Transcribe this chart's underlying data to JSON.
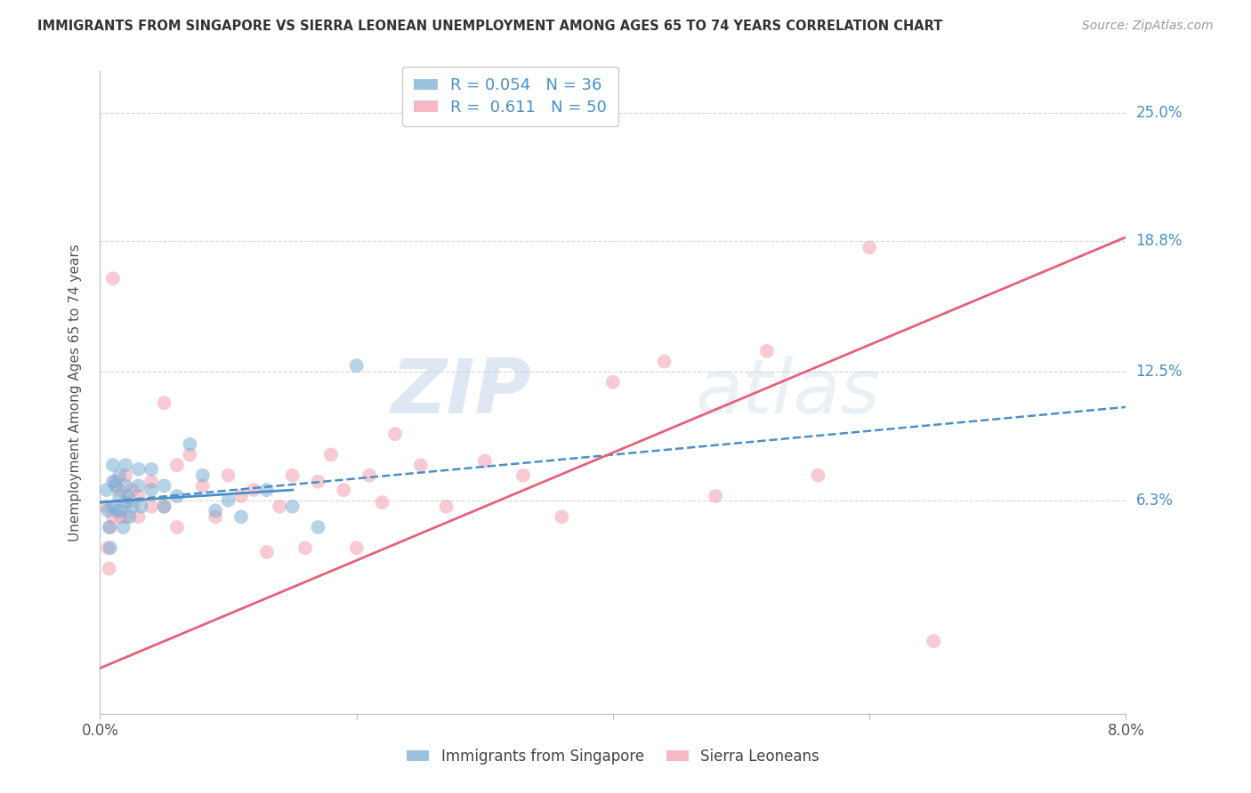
{
  "title": "IMMIGRANTS FROM SINGAPORE VS SIERRA LEONEAN UNEMPLOYMENT AMONG AGES 65 TO 74 YEARS CORRELATION CHART",
  "source": "Source: ZipAtlas.com",
  "ylabel": "Unemployment Among Ages 65 to 74 years",
  "xlim": [
    0.0,
    0.08
  ],
  "ylim": [
    -0.04,
    0.27
  ],
  "yticks": [
    0.063,
    0.125,
    0.188,
    0.25
  ],
  "ytick_labels": [
    "6.3%",
    "12.5%",
    "18.8%",
    "25.0%"
  ],
  "xticks": [
    0.0,
    0.02,
    0.04,
    0.06,
    0.08
  ],
  "xtick_labels": [
    "0.0%",
    "",
    "",
    "",
    "8.0%"
  ],
  "watermark_zip": "ZIP",
  "watermark_atlas": "atlas",
  "legend_R1": "R = 0.054",
  "legend_N1": "N = 36",
  "legend_R2": "R =  0.611",
  "legend_N2": "N = 50",
  "color_blue": "#7BAFD4",
  "color_pink": "#F4A0B0",
  "color_blue_line": "#4A90C8",
  "color_pink_line": "#E8607A",
  "blue_scatter_x": [
    0.0005,
    0.0006,
    0.0007,
    0.0008,
    0.001,
    0.001,
    0.001,
    0.0012,
    0.0013,
    0.0015,
    0.0015,
    0.0016,
    0.0018,
    0.002,
    0.002,
    0.002,
    0.0022,
    0.0023,
    0.0025,
    0.003,
    0.003,
    0.0032,
    0.004,
    0.004,
    0.005,
    0.005,
    0.006,
    0.007,
    0.008,
    0.009,
    0.01,
    0.011,
    0.013,
    0.015,
    0.017,
    0.02
  ],
  "blue_scatter_y": [
    0.068,
    0.058,
    0.05,
    0.04,
    0.06,
    0.072,
    0.08,
    0.07,
    0.058,
    0.065,
    0.075,
    0.058,
    0.05,
    0.062,
    0.07,
    0.08,
    0.065,
    0.055,
    0.06,
    0.07,
    0.078,
    0.06,
    0.068,
    0.078,
    0.06,
    0.07,
    0.065,
    0.09,
    0.075,
    0.058,
    0.063,
    0.055,
    0.068,
    0.06,
    0.05,
    0.128
  ],
  "pink_scatter_x": [
    0.0005,
    0.0006,
    0.0007,
    0.0008,
    0.001,
    0.001,
    0.0012,
    0.0015,
    0.0016,
    0.002,
    0.002,
    0.0022,
    0.0025,
    0.003,
    0.003,
    0.004,
    0.004,
    0.005,
    0.005,
    0.006,
    0.006,
    0.007,
    0.008,
    0.009,
    0.01,
    0.011,
    0.012,
    0.013,
    0.014,
    0.015,
    0.016,
    0.017,
    0.018,
    0.019,
    0.02,
    0.021,
    0.022,
    0.023,
    0.025,
    0.027,
    0.03,
    0.033,
    0.036,
    0.04,
    0.044,
    0.048,
    0.052,
    0.056,
    0.06,
    0.065
  ],
  "pink_scatter_y": [
    0.06,
    0.04,
    0.03,
    0.05,
    0.17,
    0.055,
    0.072,
    0.068,
    0.055,
    0.075,
    0.055,
    0.062,
    0.068,
    0.065,
    0.055,
    0.06,
    0.072,
    0.11,
    0.06,
    0.08,
    0.05,
    0.085,
    0.07,
    0.055,
    0.075,
    0.065,
    0.068,
    0.038,
    0.06,
    0.075,
    0.04,
    0.072,
    0.085,
    0.068,
    0.04,
    0.075,
    0.062,
    0.095,
    0.08,
    0.06,
    0.082,
    0.075,
    0.055,
    0.12,
    0.13,
    0.065,
    0.135,
    0.075,
    0.185,
    -0.005
  ],
  "blue_solid_line_x": [
    0.0,
    0.015
  ],
  "blue_solid_line_y": [
    0.062,
    0.068
  ],
  "blue_dashed_line_x": [
    0.0,
    0.08
  ],
  "blue_dashed_line_y": [
    0.062,
    0.108
  ],
  "pink_line_x": [
    0.0,
    0.08
  ],
  "pink_line_y": [
    -0.018,
    0.19
  ],
  "background_color": "#FFFFFF",
  "grid_color": "#CCCCCC"
}
